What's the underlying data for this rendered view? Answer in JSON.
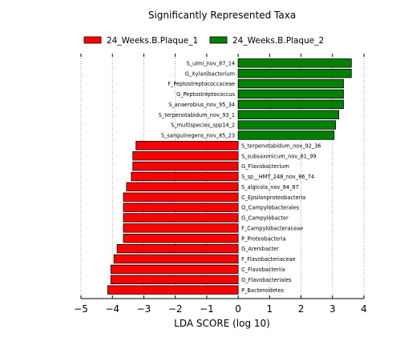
{
  "chart_data": {
    "type": "bar",
    "orientation": "horizontal",
    "title": "Significantly Represented Taxa",
    "xlabel": "LDA SCORE (log 10)",
    "ylabel": "",
    "xlim": [
      -5,
      4
    ],
    "xticks": [
      -5,
      -4,
      -3,
      -2,
      -1,
      0,
      1,
      2,
      3,
      4
    ],
    "x_tick_labels": [
      "−5",
      "−4",
      "−3",
      "−2",
      "−1",
      "0",
      "1",
      "2",
      "3",
      "4"
    ],
    "grid": "vertical-dotted",
    "legend_position": "top",
    "series": [
      {
        "name": "24_Weeks.B.Plaque_1",
        "color": "#ff0000",
        "categories": [
          "S_terpenotabidum_nov_92_36",
          "S_subsaxonicum_nov_81_99",
          "G_Flavobacterium",
          "S_sp__HMT_248_nov_86_74",
          "S_algicola_nov_84_87",
          "C_Epsilonproteobacteria",
          "O_Campylobacterales",
          "G_Campylobacter",
          "F_Campylobacteraceae",
          "P_Proteobacteria",
          "G_Arenibacter",
          "F_Flavobacteriaceae",
          "C_Flavobacteriia",
          "O_Flavobacteriales",
          "P_Bacteroidetes"
        ],
        "values": [
          -3.25,
          -3.35,
          -3.35,
          -3.4,
          -3.55,
          -3.65,
          -3.65,
          -3.65,
          -3.65,
          -3.65,
          -3.85,
          -3.95,
          -4.05,
          -4.05,
          -4.15
        ]
      },
      {
        "name": "24_Weeks.B.Plaque_2",
        "color": "#008000",
        "categories": [
          "S_ulmi_nov_87_14",
          "G_Xylanibacterium",
          "F_Peptostreptococcaceae",
          "G_Peptostreptococcus",
          "S_anaerobius_nov_95_34",
          "S_terpenotabidum_nov_93_1",
          "S_multispecies_spp14_2",
          "S_sanguinegens_nov_85_23"
        ],
        "values": [
          3.6,
          3.6,
          3.35,
          3.35,
          3.35,
          3.2,
          3.1,
          3.05
        ]
      }
    ]
  }
}
